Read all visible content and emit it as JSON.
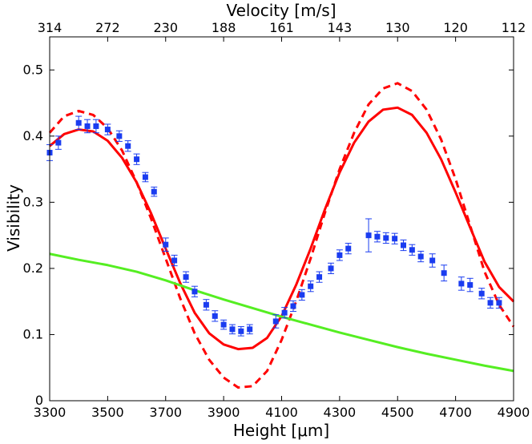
{
  "chart_data": {
    "type": "line+scatter",
    "xlabel": "Height [μm]",
    "ylabel": "Visibility",
    "top_xlabel": "Velocity [m/s]",
    "xlim": [
      3300,
      4900
    ],
    "ylim": [
      0,
      0.55
    ],
    "x_ticks": [
      3300,
      3500,
      3700,
      3900,
      4100,
      4300,
      4500,
      4700,
      4900
    ],
    "x_tick_labels": [
      "3300",
      "3500",
      "3700",
      "3900",
      "4100",
      "4300",
      "4500",
      "4700",
      "4900"
    ],
    "y_ticks": [
      0,
      0.1,
      0.2,
      0.3,
      0.4,
      0.5
    ],
    "y_tick_labels": [
      "0",
      "0.1",
      "0.2",
      "0.3",
      "0.4",
      "0.5"
    ],
    "top_ticks": [
      {
        "x": 3300,
        "label": "314"
      },
      {
        "x": 3500,
        "label": "272"
      },
      {
        "x": 3700,
        "label": "230"
      },
      {
        "x": 3900,
        "label": "188"
      },
      {
        "x": 4100,
        "label": "161"
      },
      {
        "x": 4300,
        "label": "143"
      },
      {
        "x": 4500,
        "label": "130"
      },
      {
        "x": 4700,
        "label": "120"
      },
      {
        "x": 4900,
        "label": "112"
      }
    ],
    "colors": {
      "model_solid": "#ff0000",
      "model_dashed": "#ff0000",
      "green_curve": "#55ee22",
      "data": "#1a3cf0"
    },
    "series": [
      {
        "name": "model-dashed",
        "style": "dashed",
        "x": [
          3300,
          3350,
          3400,
          3450,
          3500,
          3550,
          3600,
          3650,
          3700,
          3750,
          3800,
          3850,
          3900,
          3950,
          4000,
          4050,
          4100,
          4150,
          4200,
          4250,
          4300,
          4350,
          4400,
          4450,
          4500,
          4550,
          4600,
          4650,
          4700,
          4750,
          4800,
          4850,
          4900
        ],
        "y": [
          0.405,
          0.43,
          0.438,
          0.432,
          0.412,
          0.378,
          0.33,
          0.275,
          0.215,
          0.155,
          0.102,
          0.062,
          0.035,
          0.02,
          0.022,
          0.045,
          0.092,
          0.15,
          0.215,
          0.285,
          0.35,
          0.405,
          0.448,
          0.472,
          0.48,
          0.468,
          0.44,
          0.395,
          0.335,
          0.265,
          0.195,
          0.145,
          0.112
        ]
      },
      {
        "name": "model-solid",
        "style": "solid",
        "x": [
          3300,
          3350,
          3400,
          3450,
          3500,
          3550,
          3600,
          3650,
          3700,
          3750,
          3800,
          3850,
          3900,
          3950,
          4000,
          4050,
          4100,
          4150,
          4200,
          4250,
          4300,
          4350,
          4400,
          4450,
          4500,
          4550,
          4600,
          4650,
          4700,
          4750,
          4800,
          4850,
          4900
        ],
        "y": [
          0.385,
          0.403,
          0.41,
          0.407,
          0.393,
          0.367,
          0.33,
          0.283,
          0.23,
          0.178,
          0.133,
          0.102,
          0.085,
          0.078,
          0.08,
          0.095,
          0.128,
          0.175,
          0.23,
          0.29,
          0.345,
          0.39,
          0.422,
          0.44,
          0.443,
          0.432,
          0.405,
          0.365,
          0.315,
          0.262,
          0.21,
          0.172,
          0.15
        ]
      },
      {
        "name": "green-curve",
        "style": "solid",
        "x": [
          3300,
          3400,
          3500,
          3600,
          3700,
          3800,
          3900,
          4000,
          4100,
          4200,
          4300,
          4400,
          4500,
          4600,
          4700,
          4800,
          4900
        ],
        "y": [
          0.222,
          0.213,
          0.205,
          0.195,
          0.182,
          0.167,
          0.153,
          0.14,
          0.127,
          0.115,
          0.103,
          0.092,
          0.081,
          0.071,
          0.062,
          0.053,
          0.045
        ]
      }
    ],
    "data_points": {
      "name": "measured-visibility",
      "x": [
        3300,
        3330,
        3400,
        3430,
        3460,
        3500,
        3540,
        3570,
        3600,
        3630,
        3660,
        3700,
        3730,
        3770,
        3800,
        3840,
        3870,
        3900,
        3930,
        3960,
        3990,
        4080,
        4110,
        4140,
        4170,
        4200,
        4230,
        4270,
        4300,
        4330,
        4400,
        4430,
        4460,
        4490,
        4520,
        4550,
        4580,
        4620,
        4660,
        4720,
        4750,
        4790,
        4820,
        4850
      ],
      "y": [
        0.375,
        0.39,
        0.42,
        0.415,
        0.415,
        0.41,
        0.4,
        0.385,
        0.365,
        0.338,
        0.316,
        0.236,
        0.212,
        0.187,
        0.165,
        0.145,
        0.128,
        0.115,
        0.108,
        0.105,
        0.108,
        0.12,
        0.133,
        0.143,
        0.16,
        0.173,
        0.187,
        0.2,
        0.22,
        0.23,
        0.25,
        0.248,
        0.246,
        0.245,
        0.235,
        0.228,
        0.218,
        0.212,
        0.193,
        0.177,
        0.175,
        0.162,
        0.148,
        0.148
      ],
      "err": [
        0.012,
        0.01,
        0.01,
        0.01,
        0.01,
        0.008,
        0.008,
        0.008,
        0.008,
        0.007,
        0.007,
        0.01,
        0.008,
        0.008,
        0.008,
        0.008,
        0.008,
        0.007,
        0.007,
        0.007,
        0.007,
        0.01,
        0.008,
        0.008,
        0.008,
        0.008,
        0.008,
        0.008,
        0.008,
        0.008,
        0.025,
        0.008,
        0.008,
        0.008,
        0.008,
        0.008,
        0.008,
        0.01,
        0.012,
        0.01,
        0.01,
        0.008,
        0.008,
        0.008
      ]
    }
  }
}
